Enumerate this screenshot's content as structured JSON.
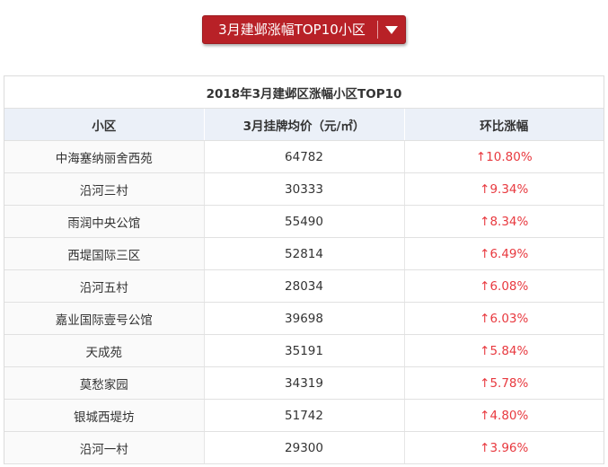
{
  "selector": {
    "label": "3月建邺涨幅TOP10小区",
    "icon": "caret-down-icon",
    "color": "#b82127"
  },
  "table": {
    "caption": "2018年3月建邺区涨幅小区TOP10",
    "columns": [
      "小区",
      "3月挂牌均价（元/㎡）",
      "环比涨幅"
    ],
    "up_arrow_icon": "up-arrow-icon",
    "rise_color": "#e8393f",
    "rows": [
      {
        "name": "中海塞纳丽舍西苑",
        "price": "64782",
        "change": "↑10.80%"
      },
      {
        "name": "沿河三村",
        "price": "30333",
        "change": "↑9.34%"
      },
      {
        "name": "雨润中央公馆",
        "price": "55490",
        "change": "↑8.34%"
      },
      {
        "name": "西堤国际三区",
        "price": "52814",
        "change": "↑6.49%"
      },
      {
        "name": "沿河五村",
        "price": "28034",
        "change": "↑6.08%"
      },
      {
        "name": "嘉业国际壹号公馆",
        "price": "39698",
        "change": "↑6.03%"
      },
      {
        "name": "天成苑",
        "price": "35191",
        "change": "↑5.84%"
      },
      {
        "name": "莫愁家园",
        "price": "34319",
        "change": "↑5.78%"
      },
      {
        "name": "银城西堤坊",
        "price": "51742",
        "change": "↑4.80%"
      },
      {
        "name": "沿河一村",
        "price": "29300",
        "change": "↑3.96%"
      }
    ]
  }
}
